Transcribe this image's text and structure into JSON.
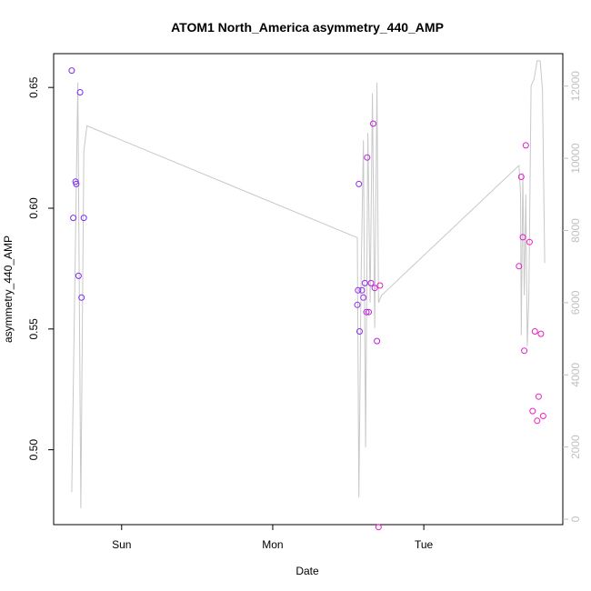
{
  "chart_data": {
    "type": "scatter",
    "title": "ATOM1 North_America asymmetry_440_AMP",
    "xlabel": "Date",
    "ylabel": "asymmetry_440_AMP",
    "x_unit": "days",
    "xlim": [
      -0.45,
      2.92
    ],
    "ylim": [
      0.469,
      0.664
    ],
    "y2lim": [
      -150,
      12900
    ],
    "x_ticks": [
      {
        "value": 0,
        "label": "Sun"
      },
      {
        "value": 1,
        "label": "Mon"
      },
      {
        "value": 2,
        "label": "Tue"
      }
    ],
    "y_ticks": [
      {
        "value": 0.5,
        "label": "0.50"
      },
      {
        "value": 0.55,
        "label": "0.55"
      },
      {
        "value": 0.6,
        "label": "0.60"
      },
      {
        "value": 0.65,
        "label": "0.65"
      }
    ],
    "y2_ticks": [
      {
        "value": 0,
        "label": "0"
      },
      {
        "value": 2000,
        "label": "2000"
      },
      {
        "value": 4000,
        "label": "4000"
      },
      {
        "value": 6000,
        "label": "6000"
      },
      {
        "value": 8000,
        "label": "8000"
      },
      {
        "value": 10000,
        "label": "10000"
      },
      {
        "value": 12000,
        "label": "12000"
      }
    ],
    "grid": false,
    "colors": {
      "line": "#c8c8c8",
      "point_gradient": [
        "#7b2cf5",
        "#8e2ee8",
        "#bb22d8",
        "#e01fc4",
        "#f21ec0"
      ],
      "axis": "#000000",
      "right_axis": "#c0c0c0"
    },
    "series": [
      {
        "kind": "points",
        "axis": "left",
        "x": [
          -0.33,
          -0.32,
          -0.305,
          -0.3,
          -0.285,
          -0.275,
          -0.265,
          -0.25,
          1.56,
          1.565,
          1.57,
          1.575,
          1.59,
          1.6,
          1.61,
          1.62,
          1.625,
          1.635,
          1.65,
          1.665,
          1.675,
          1.69,
          1.7,
          1.71,
          2.63,
          2.645,
          2.655,
          2.665,
          2.675,
          2.7,
          2.72,
          2.735,
          2.75,
          2.76,
          2.775,
          2.79
        ],
        "y": [
          0.657,
          0.596,
          0.611,
          0.61,
          0.572,
          0.648,
          0.563,
          0.596,
          0.56,
          0.566,
          0.61,
          0.549,
          0.566,
          0.563,
          0.569,
          0.557,
          0.621,
          0.557,
          0.569,
          0.635,
          0.567,
          0.545,
          0.468,
          0.568,
          0.576,
          0.613,
          0.588,
          0.541,
          0.626,
          0.586,
          0.516,
          0.549,
          0.512,
          0.522,
          0.548,
          0.514
        ]
      },
      {
        "kind": "line",
        "axis": "right",
        "x": [
          -0.33,
          -0.29,
          -0.27,
          -0.25,
          -0.23,
          1.56,
          1.57,
          1.585,
          1.6,
          1.615,
          1.63,
          1.645,
          1.66,
          1.675,
          1.69,
          1.7,
          1.72,
          2.63,
          2.64,
          2.645,
          2.655,
          2.665,
          2.675,
          2.685,
          2.695,
          2.71,
          2.73,
          2.75,
          2.77,
          2.785,
          2.8
        ],
        "y": [
          750,
          12100,
          300,
          10200,
          10900,
          7800,
          600,
          6800,
          10500,
          2000,
          10700,
          6000,
          11800,
          5300,
          12100,
          6000,
          6200,
          9800,
          9000,
          5100,
          9600,
          6200,
          9000,
          4800,
          6100,
          12000,
          12200,
          12700,
          12700,
          11900,
          7100
        ]
      }
    ]
  }
}
